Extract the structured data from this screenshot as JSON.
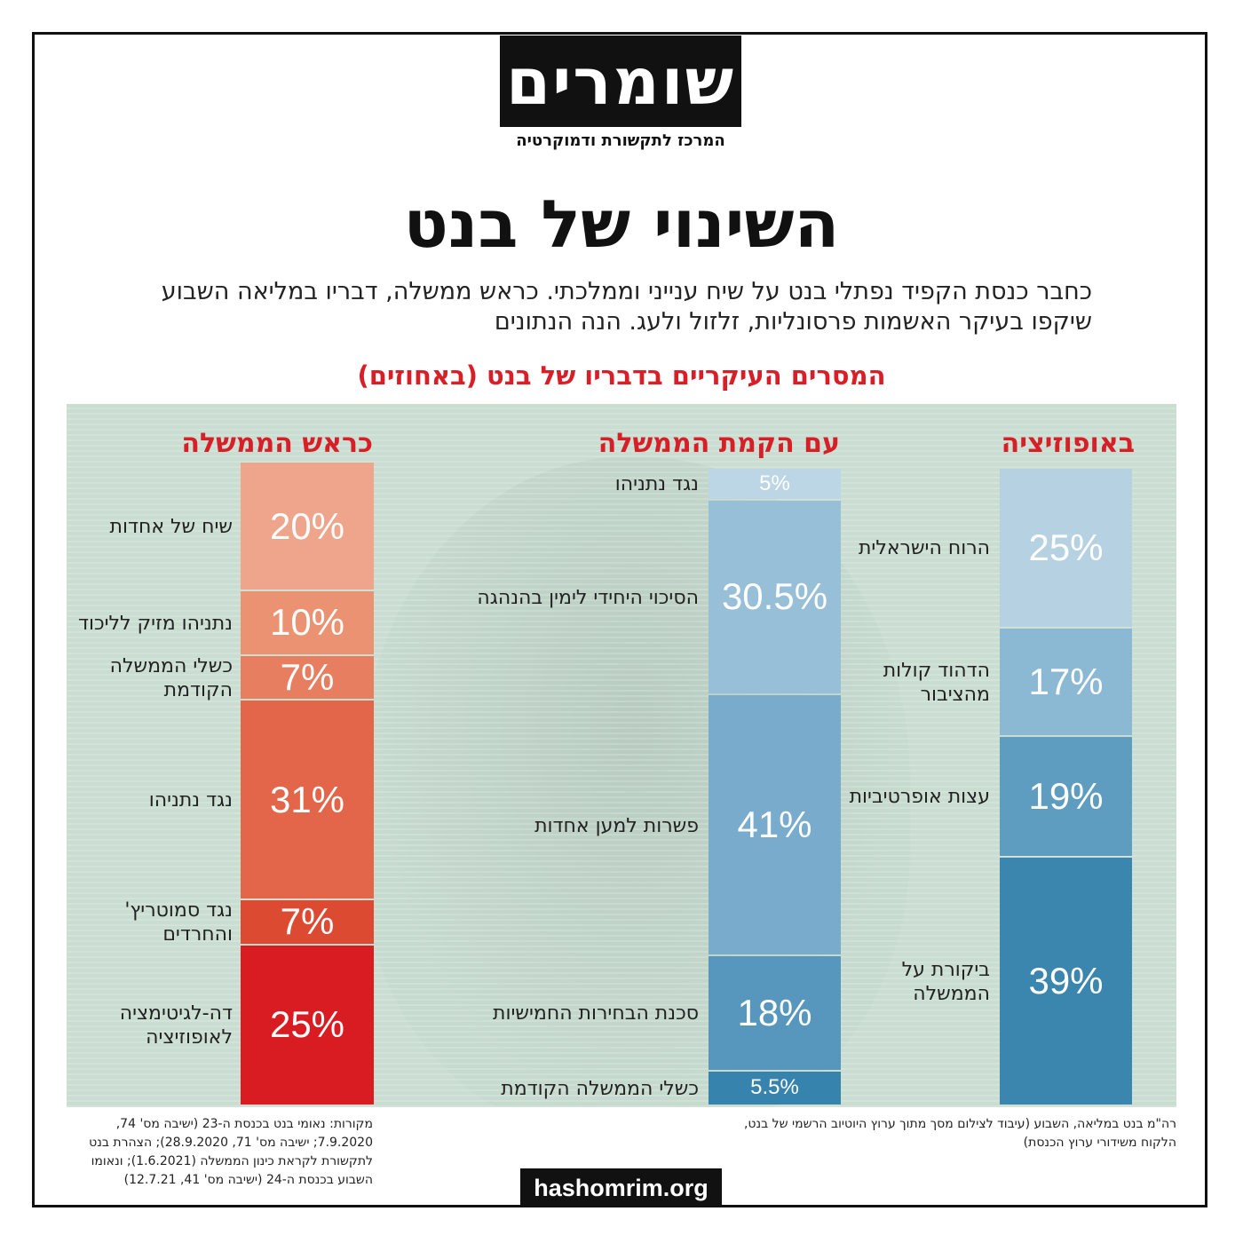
{
  "logo": {
    "name": "שומרים",
    "tagline": "המרכז לתקשורת ודמוקרטיה"
  },
  "title": "השינוי של בנט",
  "intro": "כחבר כנסת הקפיד נפתלי בנט על שיח ענייני וממלכתי. כראש ממשלה, דבריו במליאה השבוע שיקפו בעיקר האשמות פרסונליות, זלזול ולעג. הנה הנתונים",
  "chart_data": {
    "type": "bar",
    "stacked": true,
    "title": "המסרים העיקריים בדבריו של בנט (באחוזים)",
    "columns": [
      {
        "name": "באופוזיציה",
        "segments": [
          {
            "label": "הרוח הישראלית",
            "value": 25,
            "display": "25%",
            "color": "#b5d1e2"
          },
          {
            "label": "הדהוד קולות מהציבור",
            "value": 17,
            "display": "17%",
            "color": "#8bb9d3"
          },
          {
            "label": "עצות אופרטיביות",
            "value": 19,
            "display": "19%",
            "color": "#5e9cc0"
          },
          {
            "label": "ביקורת על הממשלה",
            "value": 39,
            "display": "39%",
            "color": "#3a86ae"
          }
        ]
      },
      {
        "name": "עם הקמת הממשלה",
        "segments": [
          {
            "label": "נגד נתניהו",
            "value": 5,
            "display": "5%",
            "color": "#bcd6e6"
          },
          {
            "label": "הסיכוי היחידי לימין בהנהגה",
            "value": 30.5,
            "display": "30.5%",
            "color": "#97bfd8"
          },
          {
            "label": "פשרות למען אחדות",
            "value": 41,
            "display": "41%",
            "color": "#78abcc"
          },
          {
            "label": "סכנת הבחירות החמישיות",
            "value": 18,
            "display": "18%",
            "color": "#5797bd"
          },
          {
            "label": "כשלי הממשלה הקודמת",
            "value": 5.5,
            "display": "5.5%",
            "color": "#3683ad"
          }
        ]
      },
      {
        "name": "כראש הממשלה",
        "segments": [
          {
            "label": "שיח של אחדות",
            "value": 20,
            "display": "20%",
            "color": "#eea58c"
          },
          {
            "label": "נתניהו מזיק לליכוד",
            "value": 10,
            "display": "10%",
            "color": "#eb9273"
          },
          {
            "label": "כשלי הממשלה הקודמת",
            "value": 7,
            "display": "7%",
            "color": "#e87e60"
          },
          {
            "label": "נגד נתניהו",
            "value": 31,
            "display": "31%",
            "color": "#e3664b"
          },
          {
            "label": "נגד סמוטריץ' והחרדים",
            "value": 7,
            "display": "7%",
            "color": "#dd4a32"
          },
          {
            "label": "דה-לגיטימציה לאופוזיציה",
            "value": 25,
            "display": "25%",
            "color": "#d91c22"
          }
        ]
      }
    ]
  },
  "footnotes": {
    "image_credit": "רה\"מ בנט במליאה, השבוע (עיבוד לצילום מסך מתוך ערוץ היוטיוב הרשמי של בנט, הלקוח משידורי ערוץ הכנסת)",
    "sources": "מקורות: נאומי בנט בכנסת ה-23 (ישיבה מס' 74, 7.9.2020; ישיבה מס' 71, 28.9.2020); הצהרת בנט לתקשורת לקראת כינון הממשלה (1.6.2021); ונאומו השבוע בכנסת ה-24 (ישיבה מס' 41, 12.7.21)"
  },
  "site": "hashomrim.org"
}
